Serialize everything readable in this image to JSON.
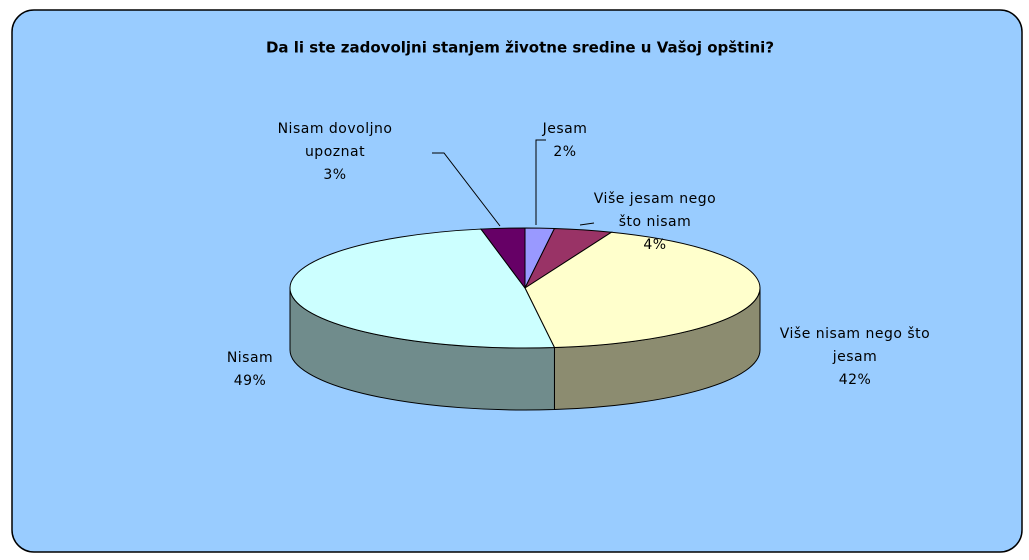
{
  "chart_data": {
    "type": "pie3d",
    "title": "Da li ste zadovoljni stanjem životne sredine u Vašoj opštini?",
    "categories": [
      "Jesam",
      "Više jesam nego što nisam",
      "Više nisam nego što jesam",
      "Nisam",
      "Nisam dovoljno upoznat"
    ],
    "values": [
      2,
      4,
      42,
      49,
      3
    ],
    "value_labels": [
      "2%",
      "4%",
      "42%",
      "49%",
      "3%"
    ],
    "colors": [
      "#9999ff",
      "#993366",
      "#ffffcc",
      "#ccffff",
      "#660066"
    ]
  }
}
